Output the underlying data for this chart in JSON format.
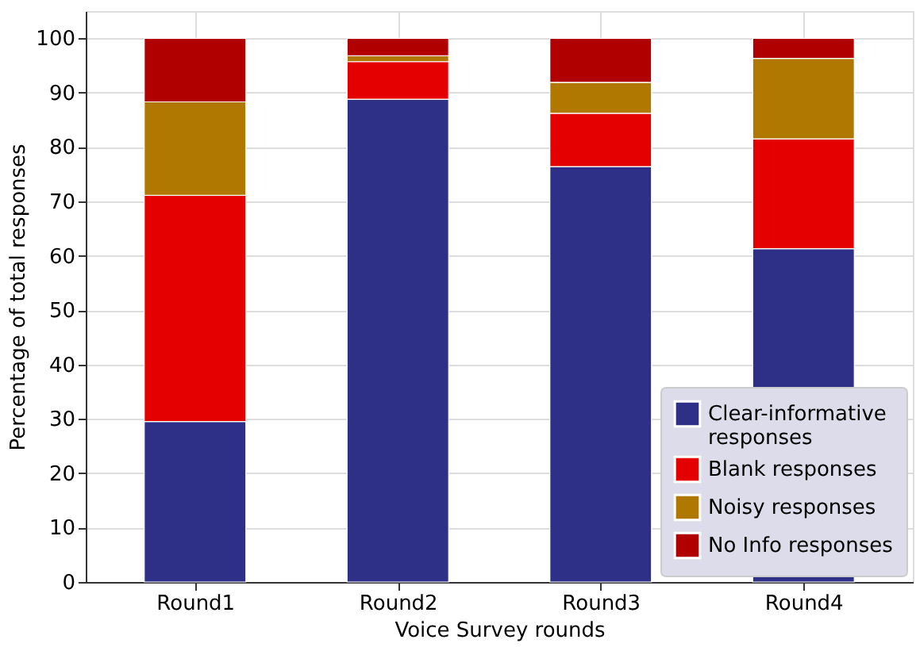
{
  "chart_data": {
    "type": "bar",
    "stacked": true,
    "xlabel": "Voice Survey rounds",
    "ylabel": "Percentage of total responses",
    "categories": [
      "Round1",
      "Round2",
      "Round3",
      "Round4"
    ],
    "series": [
      {
        "name": "Clear-informative\n responses",
        "color": "#2e3087",
        "values": [
          29.5,
          88.8,
          76.4,
          61.3
        ]
      },
      {
        "name": "Blank responses",
        "color": "#e50000",
        "values": [
          41.6,
          6.9,
          9.8,
          20.2
        ]
      },
      {
        "name": "Noisy responses",
        "color": "#b07800",
        "values": [
          17.2,
          1.1,
          5.7,
          14.8
        ]
      },
      {
        "name": "No Info responses",
        "color": "#b00000",
        "values": [
          11.7,
          3.2,
          8.1,
          3.7
        ]
      }
    ],
    "ylim": [
      0,
      105
    ],
    "yticks": [
      0,
      10,
      20,
      30,
      40,
      50,
      60,
      70,
      80,
      90,
      100
    ],
    "grid": true,
    "legend": "bottom right"
  }
}
